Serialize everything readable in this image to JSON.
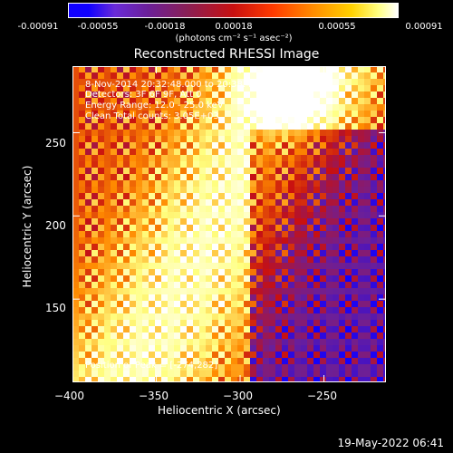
{
  "colorbar": {
    "tick_labels": [
      "-0.00091",
      "-0.00055",
      "-0.00018",
      "0.00018",
      "0.00055",
      "0.00091"
    ],
    "units": "(photons cm⁻² s⁻¹ asec⁻²)",
    "colors": [
      "#1000ff",
      "#6b1f99",
      "#c81010",
      "#ff8a00",
      "#ffff80",
      "#ffffff"
    ]
  },
  "chart_data": {
    "type": "heatmap",
    "title": "Reconstructed RHESSI Image",
    "xlabel": "Heliocentric X (arcsec)",
    "ylabel": "Heliocentric Y (arcsec)",
    "xlim": [
      -400,
      -213
    ],
    "ylim": [
      100,
      290
    ],
    "x_ticks": [
      -400,
      -350,
      -300,
      -250
    ],
    "y_ticks": [
      150,
      200,
      250
    ],
    "x_tick_labels": [
      "−400",
      "−350",
      "−300",
      "−250"
    ],
    "y_tick_labels": [
      "150",
      "200",
      "250"
    ],
    "value_range": [
      -0.00091,
      0.00091
    ],
    "peak_position": [
      -274,
      282
    ],
    "annotations": [
      "8-Nov-2014 20:32:48.000 to 20:38:48.000",
      "Detectors: 3F 6F 9F, Att 0",
      "Energy Range: 12.0 - 25.0 keV",
      "Clean    Total counts: 3.05E+03",
      "Position of Peak = [-274,282]"
    ]
  },
  "footer": {
    "timestamp": "19-May-2022 06:41"
  }
}
